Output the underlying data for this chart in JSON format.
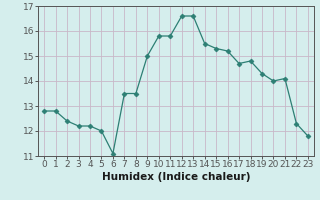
{
  "x": [
    0,
    1,
    2,
    3,
    4,
    5,
    6,
    7,
    8,
    9,
    10,
    11,
    12,
    13,
    14,
    15,
    16,
    17,
    18,
    19,
    20,
    21,
    22,
    23
  ],
  "y": [
    12.8,
    12.8,
    12.4,
    12.2,
    12.2,
    12.0,
    11.1,
    13.5,
    13.5,
    15.0,
    15.8,
    15.8,
    16.6,
    16.6,
    15.5,
    15.3,
    15.2,
    14.7,
    14.8,
    14.3,
    14.0,
    14.1,
    12.3,
    11.8
  ],
  "line_color": "#2d7f74",
  "marker": "D",
  "marker_size": 2.5,
  "bg_color": "#d5eeed",
  "grid_color": "#c8b8c8",
  "xlabel": "Humidex (Indice chaleur)",
  "ylim": [
    11,
    17
  ],
  "xlim": [
    -0.5,
    23.5
  ],
  "yticks": [
    11,
    12,
    13,
    14,
    15,
    16,
    17
  ],
  "xtick_labels": [
    "0",
    "1",
    "2",
    "3",
    "4",
    "5",
    "6",
    "7",
    "8",
    "9",
    "10",
    "11",
    "12",
    "13",
    "14",
    "15",
    "16",
    "17",
    "18",
    "19",
    "20",
    "21",
    "22",
    "23"
  ],
  "xlabel_fontsize": 7.5,
  "tick_fontsize": 6.5,
  "axis_color": "#555555"
}
